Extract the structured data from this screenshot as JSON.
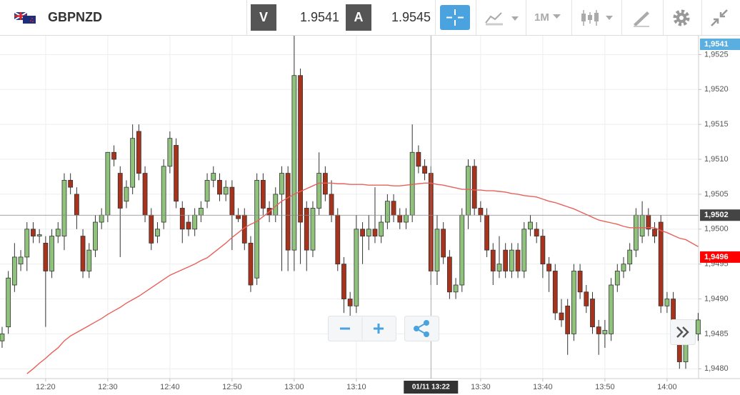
{
  "toolbar": {
    "symbol": "GBPNZD",
    "bid_label": "V",
    "bid": "1.9541",
    "ask_label": "A",
    "ask": "1.9545",
    "timeframe": "1M"
  },
  "chart_data": {
    "type": "candlestick",
    "up_color": "#8fc27a",
    "down_color": "#a8331c",
    "x": [
      733,
      734,
      735,
      736,
      737,
      738,
      739,
      740,
      741,
      742,
      743,
      744,
      745,
      746,
      747,
      748,
      749,
      750,
      751,
      752,
      753,
      754,
      755,
      756,
      757,
      758,
      759,
      760,
      761,
      762,
      763,
      764,
      765,
      766,
      767,
      768,
      769,
      770,
      771,
      772,
      773,
      774,
      775,
      776,
      777,
      778,
      779,
      780,
      781,
      782,
      783,
      784,
      785,
      786,
      787,
      788,
      789,
      790,
      791,
      792,
      793,
      794,
      795,
      796,
      797,
      798,
      799,
      800,
      801,
      802,
      803,
      804,
      805,
      806,
      807,
      808,
      809,
      810,
      811,
      812,
      813,
      814,
      815,
      816,
      817,
      818,
      819,
      820,
      821,
      822,
      823,
      824,
      825,
      826,
      827,
      828,
      829,
      830,
      831,
      832,
      833,
      834,
      835,
      836,
      837,
      838,
      839,
      840,
      841,
      842,
      843,
      844,
      845
    ],
    "ohlc": [
      [
        1.9484,
        1.9486,
        1.9483,
        1.9485
      ],
      [
        1.9486,
        1.9494,
        1.9485,
        1.9493
      ],
      [
        1.9492,
        1.9498,
        1.9491,
        1.9496
      ],
      [
        1.9495,
        1.9497,
        1.9494,
        1.9496
      ],
      [
        1.9496,
        1.9501,
        1.9494,
        1.95
      ],
      [
        1.95,
        1.9501,
        1.9498,
        1.9499
      ],
      [
        1.9499,
        1.95,
        1.9498,
        1.94992
      ],
      [
        1.9498,
        1.9499,
        1.9486,
        1.9494
      ],
      [
        1.9494,
        1.95,
        1.9493,
        1.9499
      ],
      [
        1.9499,
        1.9501,
        1.9498,
        1.95
      ],
      [
        1.9499,
        1.9508,
        1.9497,
        1.9507
      ],
      [
        1.9507,
        1.9508,
        1.9505,
        1.9506
      ],
      [
        1.9505,
        1.9506,
        1.95,
        1.9502
      ],
      [
        1.9499,
        1.95,
        1.9493,
        1.9494
      ],
      [
        1.9494,
        1.9498,
        1.9493,
        1.9497
      ],
      [
        1.9497,
        1.9502,
        1.9496,
        1.9501
      ],
      [
        1.9501,
        1.9503,
        1.95,
        1.9502
      ],
      [
        1.9502,
        1.9511,
        1.9501,
        1.9511
      ],
      [
        1.9511,
        1.9512,
        1.9509,
        1.951
      ],
      [
        1.9508,
        1.9509,
        1.9496,
        1.9503
      ],
      [
        1.9504,
        1.9507,
        1.9503,
        1.9506
      ],
      [
        1.9506,
        1.9515,
        1.9505,
        1.9513
      ],
      [
        1.9514,
        1.9515,
        1.9507,
        1.9508
      ],
      [
        1.9508,
        1.9509,
        1.9501,
        1.9502
      ],
      [
        1.9502,
        1.9503,
        1.9497,
        1.9498
      ],
      [
        1.9499,
        1.9501,
        1.9498,
        1.95
      ],
      [
        1.9501,
        1.951,
        1.95,
        1.9509
      ],
      [
        1.9509,
        1.9514,
        1.9508,
        1.9513
      ],
      [
        1.9512,
        1.9513,
        1.9503,
        1.9504
      ],
      [
        1.9503,
        1.9504,
        1.9498,
        1.95
      ],
      [
        1.9501,
        1.9502,
        1.9499,
        1.95
      ],
      [
        1.95,
        1.9503,
        1.9499,
        1.9502
      ],
      [
        1.9502,
        1.9504,
        1.9501,
        1.9503
      ],
      [
        1.9504,
        1.9508,
        1.9503,
        1.9507
      ],
      [
        1.9507,
        1.9509,
        1.9506,
        1.9508
      ],
      [
        1.9507,
        1.9508,
        1.9504,
        1.9505
      ],
      [
        1.9505,
        1.9507,
        1.9504,
        1.9506
      ],
      [
        1.9506,
        1.9507,
        1.9497,
        1.9502
      ],
      [
        1.9502,
        1.9503,
        1.9501,
        1.95015
      ],
      [
        1.9502,
        1.9503,
        1.9497,
        1.9498
      ],
      [
        1.9498,
        1.9499,
        1.9491,
        1.9492
      ],
      [
        1.9493,
        1.9508,
        1.9492,
        1.9507
      ],
      [
        1.9507,
        1.9508,
        1.9502,
        1.9503
      ],
      [
        1.9503,
        1.9504,
        1.9501,
        1.9502
      ],
      [
        1.9502,
        1.9506,
        1.9501,
        1.9505
      ],
      [
        1.9505,
        1.9509,
        1.9494,
        1.9508
      ],
      [
        1.9508,
        1.9509,
        1.9494,
        1.9497
      ],
      [
        1.9497,
        1.95277,
        1.9494,
        1.9522
      ],
      [
        1.9522,
        1.9523,
        1.9495,
        1.9501
      ],
      [
        1.9503,
        1.9504,
        1.9494,
        1.9497
      ],
      [
        1.9497,
        1.9504,
        1.9496,
        1.9503
      ],
      [
        1.9503,
        1.9511,
        1.9502,
        1.9508
      ],
      [
        1.9508,
        1.9509,
        1.9504,
        1.9505
      ],
      [
        1.9505,
        1.9507,
        1.9501,
        1.9502
      ],
      [
        1.9502,
        1.9503,
        1.9494,
        1.9495
      ],
      [
        1.9495,
        1.9496,
        1.9488,
        1.949
      ],
      [
        1.949,
        1.9491,
        1.9486,
        1.9489
      ],
      [
        1.9489,
        1.9502,
        1.9488,
        1.95
      ],
      [
        1.95,
        1.9501,
        1.9495,
        1.9499
      ],
      [
        1.9499,
        1.9502,
        1.9497,
        1.95
      ],
      [
        1.95,
        1.9506,
        1.9498,
        1.9499
      ],
      [
        1.9499,
        1.9502,
        1.9498,
        1.9501
      ],
      [
        1.9501,
        1.9505,
        1.95,
        1.9504
      ],
      [
        1.9504,
        1.9505,
        1.9501,
        1.9502
      ],
      [
        1.9502,
        1.9503,
        1.95,
        1.9501
      ],
      [
        1.9501,
        1.9503,
        1.95,
        1.9502
      ],
      [
        1.9502,
        1.9515,
        1.9501,
        1.9511
      ],
      [
        1.9511,
        1.9512,
        1.9508,
        1.9509
      ],
      [
        1.9509,
        1.951,
        1.9507,
        1.9508
      ],
      [
        1.9508,
        1.9509,
        1.9492,
        1.9494
      ],
      [
        1.9494,
        1.9502,
        1.9492,
        1.95
      ],
      [
        1.95,
        1.9501,
        1.9495,
        1.9496
      ],
      [
        1.9496,
        1.9497,
        1.949,
        1.9491
      ],
      [
        1.9491,
        1.9493,
        1.949,
        1.9492
      ],
      [
        1.9492,
        1.9503,
        1.9491,
        1.9502
      ],
      [
        1.9502,
        1.951,
        1.95,
        1.9509
      ],
      [
        1.9509,
        1.951,
        1.9502,
        1.9503
      ],
      [
        1.9503,
        1.9504,
        1.9501,
        1.9502
      ],
      [
        1.9502,
        1.9503,
        1.9496,
        1.9497
      ],
      [
        1.9497,
        1.9498,
        1.9492,
        1.9494
      ],
      [
        1.9494,
        1.9499,
        1.9493,
        1.9495
      ],
      [
        1.9497,
        1.9498,
        1.9493,
        1.9494
      ],
      [
        1.9494,
        1.9498,
        1.9493,
        1.9497
      ],
      [
        1.9497,
        1.9498,
        1.9493,
        1.9494
      ],
      [
        1.9494,
        1.9501,
        1.9493,
        1.95
      ],
      [
        1.95,
        1.9502,
        1.9499,
        1.9501
      ],
      [
        1.95,
        1.9501,
        1.9498,
        1.9499
      ],
      [
        1.9499,
        1.95,
        1.9493,
        1.9495
      ],
      [
        1.9495,
        1.9496,
        1.9491,
        1.9494
      ],
      [
        1.9494,
        1.9495,
        1.9487,
        1.9488
      ],
      [
        1.9488,
        1.949,
        1.9486,
        1.9487
      ],
      [
        1.9489,
        1.949,
        1.9482,
        1.9485
      ],
      [
        1.9485,
        1.9495,
        1.9484,
        1.9494
      ],
      [
        1.9494,
        1.9495,
        1.949,
        1.9491
      ],
      [
        1.9491,
        1.9492,
        1.9488,
        1.9489
      ],
      [
        1.949,
        1.9491,
        1.9485,
        1.9486
      ],
      [
        1.9486,
        1.9487,
        1.9482,
        1.9485
      ],
      [
        1.9485,
        1.9487,
        1.9483,
        1.94855
      ],
      [
        1.9485,
        1.9493,
        1.9484,
        1.9492
      ],
      [
        1.9492,
        1.9495,
        1.9491,
        1.9494
      ],
      [
        1.9494,
        1.9496,
        1.9493,
        1.9495
      ],
      [
        1.9495,
        1.9498,
        1.9494,
        1.9497
      ],
      [
        1.9497,
        1.9503,
        1.9496,
        1.9502
      ],
      [
        1.9499,
        1.9504,
        1.9498,
        1.9502
      ],
      [
        1.9502,
        1.9503,
        1.9499,
        1.95
      ],
      [
        1.95,
        1.9501,
        1.9498,
        1.9499
      ],
      [
        1.9501,
        1.9502,
        1.9488,
        1.9489
      ],
      [
        1.9489,
        1.9491,
        1.9488,
        1.949
      ],
      [
        1.949,
        1.9491,
        1.9484,
        1.9485
      ],
      [
        1.9485,
        1.9486,
        1.948,
        1.9481
      ],
      [
        1.9481,
        1.9487,
        1.948,
        1.9486
      ],
      [
        1.9486,
        1.9487,
        1.9484,
        1.9485
      ],
      [
        1.9485,
        1.9488,
        1.9484,
        1.9487
      ]
    ],
    "ma": {
      "color": "#e8605a",
      "values": [
        null,
        null,
        null,
        null,
        1.94793,
        1.948,
        1.94808,
        1.94815,
        1.94823,
        1.9483,
        1.9484,
        1.94847,
        1.94852,
        1.94857,
        1.94862,
        1.94867,
        1.94872,
        1.94878,
        1.94883,
        1.94888,
        1.94894,
        1.94899,
        1.94904,
        1.9491,
        1.94916,
        1.94922,
        1.94928,
        1.94934,
        1.94938,
        1.94942,
        1.94946,
        1.9495,
        1.94955,
        1.94959,
        1.94966,
        1.94973,
        1.9498,
        1.94988,
        1.94995,
        1.95002,
        1.95007,
        1.95011,
        1.95018,
        1.95025,
        1.95033,
        1.9504,
        1.95045,
        1.9505,
        1.95054,
        1.95058,
        1.95062,
        1.95066,
        1.95066,
        1.95066,
        1.95065,
        1.95065,
        1.95064,
        1.95064,
        1.95064,
        1.95063,
        1.95063,
        1.95063,
        1.95063,
        1.95062,
        1.95062,
        1.95063,
        1.95064,
        1.95065,
        1.95066,
        1.95066,
        1.95064,
        1.95063,
        1.95061,
        1.95059,
        1.95057,
        1.95057,
        1.95056,
        1.95056,
        1.95055,
        1.95055,
        1.95054,
        1.95053,
        1.95051,
        1.9505,
        1.95048,
        1.95047,
        1.95046,
        1.95043,
        1.9504,
        1.95038,
        1.95035,
        1.95032,
        1.95029,
        1.95025,
        1.95021,
        1.95017,
        1.95013,
        1.95011,
        1.95009,
        1.95007,
        1.95004,
        1.95002,
        1.95002,
        1.95002,
        1.95002,
        1.95002,
        1.94998,
        1.94995,
        1.94991,
        1.94987,
        1.94985,
        1.9498,
        1.94975
      ]
    },
    "xlim": [
      732.66,
      845.07
    ],
    "xticks": [
      {
        "value": 740,
        "label": "12:20"
      },
      {
        "value": 750,
        "label": "12:30"
      },
      {
        "value": 760,
        "label": "12:40"
      },
      {
        "value": 770,
        "label": "12:50"
      },
      {
        "value": 780,
        "label": "13:00"
      },
      {
        "value": 790,
        "label": "13:10"
      },
      {
        "value": 810,
        "label": "13:30"
      },
      {
        "value": 820,
        "label": "13:40"
      },
      {
        "value": 830,
        "label": "13:50"
      },
      {
        "value": 840,
        "label": "14:00"
      }
    ],
    "ylim": [
      1.94786,
      1.95277
    ],
    "yticks": [
      {
        "value": 1.9525,
        "label": "1,9525"
      },
      {
        "value": 1.952,
        "label": "1,9520"
      },
      {
        "value": 1.9515,
        "label": "1,9515"
      },
      {
        "value": 1.951,
        "label": "1,9510"
      },
      {
        "value": 1.9505,
        "label": "1,9505"
      },
      {
        "value": 1.95,
        "label": "1,9500"
      },
      {
        "value": 1.9495,
        "label": "1,9495"
      },
      {
        "value": 1.949,
        "label": "1,9490"
      },
      {
        "value": 1.9485,
        "label": "1,9485"
      },
      {
        "value": 1.948,
        "label": "1,9480"
      }
    ],
    "grid": true,
    "crosshair": {
      "x": {
        "value": 802,
        "label": "01/11 13:22"
      },
      "y": {
        "value": 1.9502,
        "label": "1,9502"
      }
    },
    "price_markers": [
      {
        "value": 1.9541,
        "label": "1,9541",
        "color": "#5aaee0"
      },
      {
        "value": 1.9496,
        "label": "1,9496",
        "color": "#ff0000"
      }
    ]
  }
}
